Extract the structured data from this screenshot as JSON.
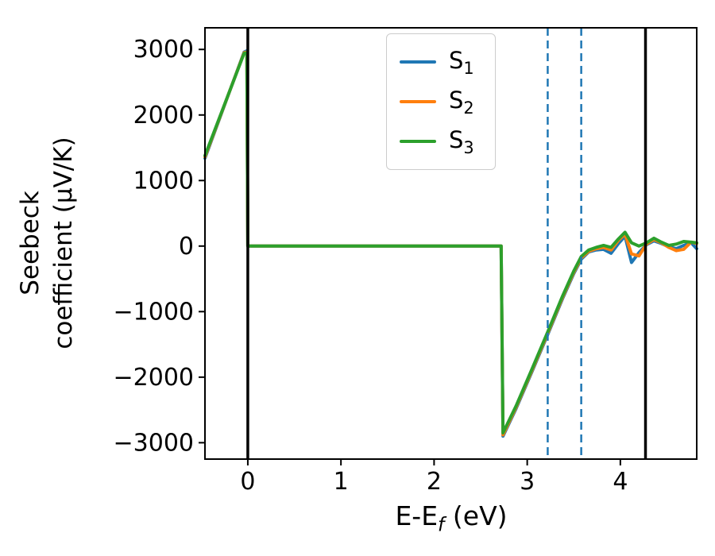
{
  "figure": {
    "ylabel_line1": "Seebeck",
    "ylabel_line2": "coefficient  (μV/K)",
    "xlabel_main": "E-E",
    "xlabel_sub": "f",
    "xlabel_unit": " (eV)"
  },
  "chart_data": {
    "type": "line",
    "title": "",
    "xlabel": "E-E_f (eV)",
    "ylabel": "Seebeck coefficient (μV/K)",
    "xlim": [
      -0.46,
      4.82
    ],
    "ylim": [
      -3250,
      3330
    ],
    "xticks": [
      0,
      1,
      2,
      3,
      4
    ],
    "xtick_labels": [
      "0",
      "1",
      "2",
      "3",
      "4"
    ],
    "yticks": [
      -3000,
      -2000,
      -1000,
      0,
      1000,
      2000,
      3000
    ],
    "ytick_labels": [
      "−3000",
      "−2000",
      "−1000",
      "0",
      "1000",
      "2000",
      "3000"
    ],
    "grid": false,
    "legend_position": "upper center",
    "vlines_solid": {
      "x": [
        0.0,
        4.27
      ],
      "color": "#000000",
      "width": 3.5
    },
    "vlines_dashed": {
      "x": [
        3.22,
        3.58
      ],
      "color": "#1f77b4",
      "width": 2.5
    },
    "legend": [
      {
        "main": "S",
        "sub": "1",
        "color": "#1f77b4"
      },
      {
        "main": "S",
        "sub": "2",
        "color": "#ff7f0e"
      },
      {
        "main": "S",
        "sub": "3",
        "color": "#2ca02c"
      }
    ],
    "x_shared": [
      -0.46,
      -0.04,
      -0.01,
      0.0,
      2.72,
      2.74,
      2.88,
      3.05,
      3.22,
      3.38,
      3.5,
      3.58,
      3.66,
      3.74,
      3.82,
      3.9,
      3.98,
      4.05,
      4.12,
      4.2,
      4.28,
      4.36,
      4.44,
      4.52,
      4.6,
      4.68,
      4.76,
      4.82
    ],
    "series": [
      {
        "name": "S1",
        "color": "#1f77b4",
        "y": [
          1340,
          2960,
          2980,
          0,
          0,
          -2900,
          -2480,
          -1920,
          -1350,
          -800,
          -420,
          -200,
          -90,
          -60,
          -50,
          -110,
          40,
          150,
          -250,
          -100,
          20,
          80,
          40,
          -10,
          -40,
          10,
          50,
          -40
        ]
      },
      {
        "name": "S2",
        "color": "#ff7f0e",
        "y": [
          1360,
          2950,
          2960,
          0,
          0,
          -2880,
          -2460,
          -1900,
          -1330,
          -780,
          -400,
          -180,
          -80,
          -40,
          -20,
          -60,
          90,
          180,
          -120,
          -150,
          30,
          100,
          50,
          -20,
          -70,
          -50,
          60,
          40
        ]
      },
      {
        "name": "S3",
        "color": "#2ca02c",
        "y": [
          1380,
          2940,
          2950,
          0,
          0,
          -2850,
          -2440,
          -1880,
          -1310,
          -760,
          -380,
          -160,
          -60,
          -20,
          10,
          -20,
          110,
          210,
          50,
          0,
          50,
          120,
          60,
          10,
          30,
          70,
          60,
          50
        ]
      }
    ]
  }
}
